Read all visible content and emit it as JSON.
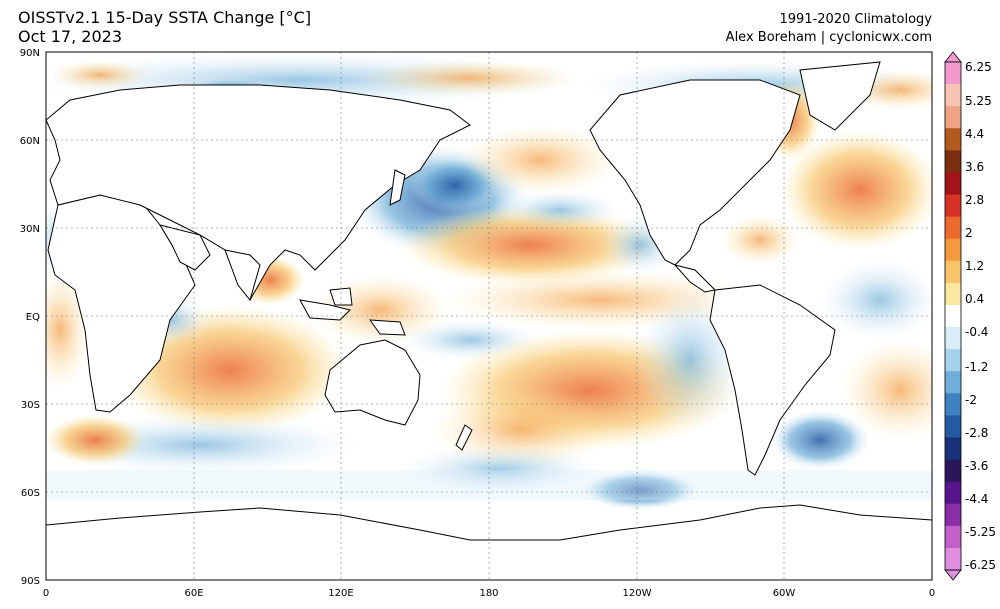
{
  "header": {
    "title_line1": "OISSTv2.1 15-Day SSTA Change [°C]",
    "title_line2": "Oct 17, 2023",
    "climatology": "1991-2020 Climatology",
    "credit": "Alex Boreham | cyclonicwx.com"
  },
  "axes": {
    "lat_labels": [
      "90N",
      "60N",
      "30N",
      "EQ",
      "30S",
      "60S",
      "90S"
    ],
    "lon_labels": [
      "0",
      "60E",
      "120E",
      "180",
      "120W",
      "60W",
      "0"
    ]
  },
  "colorbar": {
    "labels": [
      "6.25",
      "5.25",
      "4.4",
      "3.6",
      "2.8",
      "2",
      "1.2",
      "0.4",
      "-0.4",
      "-1.2",
      "-2",
      "-2.8",
      "-3.6",
      "-4.4",
      "-5.25",
      "-6.25"
    ],
    "colors": [
      "#f29ad0",
      "#f7c4b4",
      "#efa385",
      "#b35a1f",
      "#7a2f10",
      "#a3141a",
      "#d63226",
      "#eb6a2e",
      "#f39a40",
      "#f7c46a",
      "#fbe79f",
      "#ffffff",
      "#d9edf8",
      "#a6d3ec",
      "#6eaed8",
      "#3f82c0",
      "#2459a3",
      "#18327a",
      "#2a1658",
      "#56158a",
      "#8a2fa6",
      "#c060c8",
      "#e08ee0"
    ]
  },
  "ocean_regions": [
    {
      "name": "northwest-pacific-cooling",
      "color": "#3f82c0",
      "lon": 160,
      "lat": 40
    },
    {
      "name": "subtropical-north-pacific-warming",
      "color": "#f39a40",
      "lon": 200,
      "lat": 25
    },
    {
      "name": "east-pacific-warming",
      "color": "#f7c46a",
      "lon": 230,
      "lat": 5
    },
    {
      "name": "south-pacific-warming",
      "color": "#f39a40",
      "lon": 220,
      "lat": -30
    },
    {
      "name": "indian-ocean-warming",
      "color": "#f39a40",
      "lon": 80,
      "lat": -15
    },
    {
      "name": "north-atlantic-warming",
      "color": "#f39a40",
      "lon": 330,
      "lat": 45
    },
    {
      "name": "southern-ocean-cooling",
      "color": "#6eaed8",
      "lon": 180,
      "lat": -50
    },
    {
      "name": "arctic-cooling",
      "color": "#6eaed8",
      "lon": 120,
      "lat": 75
    }
  ]
}
